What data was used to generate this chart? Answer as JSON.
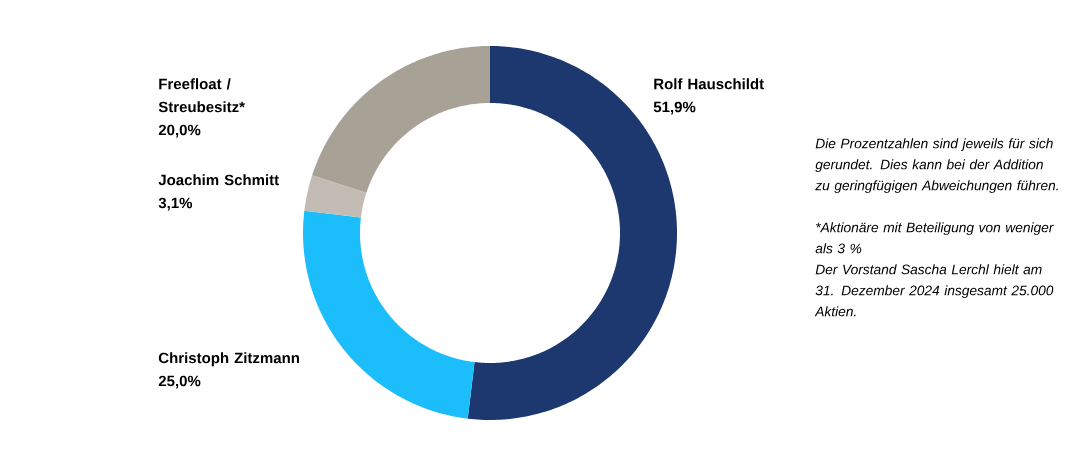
{
  "chart_data": {
    "type": "donut",
    "categories": [
      "Rolf Hauschildt",
      "Christoph Zitzmann",
      "Joachim Schmitt",
      "Freefloat / Streubesitz*"
    ],
    "values": [
      51.9,
      25.0,
      3.1,
      20.0
    ],
    "value_labels": [
      "51,9%",
      "25,0%",
      "3,1%",
      "20,0%"
    ],
    "colors": [
      "#1c386e",
      "#1bbefa",
      "#c3bcb5",
      "#a8a196"
    ],
    "annotations": [
      "Die Prozentzahlen sind jeweils für sich gerundet. Dies kann bei der Addition zu geringfügigen Abweichungen führen.",
      "*Aktionäre mit Beteiligung von weniger als 3 %",
      "Der Vorstand Sascha Lerchl hielt am 31. Dezember 2024 insgesamt 25.000 Aktien."
    ]
  }
}
